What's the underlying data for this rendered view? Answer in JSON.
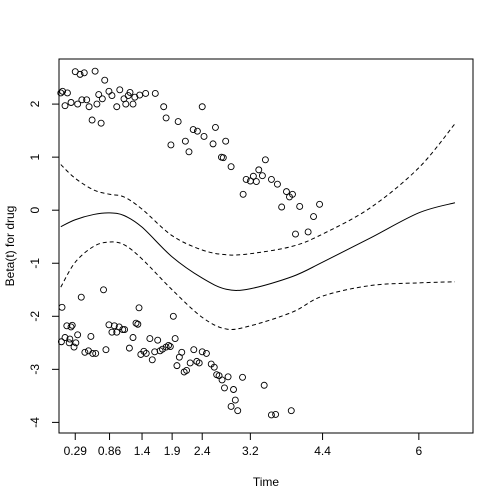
{
  "chart_data": {
    "type": "scatter",
    "title": "",
    "xlabel": "Time",
    "ylabel": "Beta(t) for drug",
    "x_ticks": [
      {
        "label": "0.29",
        "x": 0.29
      },
      {
        "label": "0.86",
        "x": 0.86
      },
      {
        "label": "1.4",
        "x": 1.4
      },
      {
        "label": "1.9",
        "x": 1.9
      },
      {
        "label": "2.4",
        "x": 2.4
      },
      {
        "label": "3.2",
        "x": 3.2
      },
      {
        "label": "4.4",
        "x": 4.4
      },
      {
        "label": "6",
        "x": 6.0
      }
    ],
    "y_ticks": [
      {
        "label": "-4",
        "y": -4
      },
      {
        "label": "-3",
        "y": -3
      },
      {
        "label": "-2",
        "y": -2
      },
      {
        "label": "-1",
        "y": -1
      },
      {
        "label": "0",
        "y": 0
      },
      {
        "label": "1",
        "y": 1
      },
      {
        "label": "2",
        "y": 2
      }
    ],
    "xlim": [
      0.02,
      6.9
    ],
    "ylim": [
      -4.2,
      2.85
    ],
    "grid": false,
    "legend": "none",
    "curve_knots_x": [
      0.05,
      0.29,
      0.6,
      0.86,
      1.1,
      1.4,
      1.9,
      2.4,
      2.8,
      3.2,
      3.9,
      4.4,
      5.2,
      6.0,
      6.6
    ],
    "series": [
      {
        "role": "fit",
        "line_style": "solid",
        "y": [
          -0.31,
          -0.18,
          -0.08,
          -0.05,
          -0.1,
          -0.32,
          -0.88,
          -1.28,
          -1.49,
          -1.48,
          -1.25,
          -0.98,
          -0.52,
          -0.05,
          0.14
        ]
      },
      {
        "role": "upper-band",
        "line_style": "dashed",
        "y": [
          0.86,
          0.6,
          0.38,
          0.3,
          0.25,
          0.02,
          -0.48,
          -0.75,
          -0.84,
          -0.82,
          -0.68,
          -0.45,
          0.05,
          0.8,
          1.63
        ]
      },
      {
        "role": "lower-band",
        "line_style": "dashed",
        "y": [
          -1.45,
          -0.98,
          -0.68,
          -0.6,
          -0.65,
          -0.92,
          -1.5,
          -2.02,
          -2.24,
          -2.18,
          -1.92,
          -1.62,
          -1.42,
          -1.37,
          -1.35
        ]
      }
    ],
    "points": [
      [
        0.05,
        2.21
      ],
      [
        0.08,
        2.24
      ],
      [
        0.12,
        1.97
      ],
      [
        0.16,
        2.21
      ],
      [
        0.22,
        2.03
      ],
      [
        0.29,
        2.61
      ],
      [
        0.33,
        2.0
      ],
      [
        0.37,
        2.56
      ],
      [
        0.4,
        2.08
      ],
      [
        0.44,
        2.59
      ],
      [
        0.48,
        2.08
      ],
      [
        0.52,
        1.95
      ],
      [
        0.57,
        1.7
      ],
      [
        0.62,
        2.62
      ],
      [
        0.65,
        2.0
      ],
      [
        0.68,
        2.18
      ],
      [
        0.72,
        1.64
      ],
      [
        0.74,
        2.1
      ],
      [
        0.78,
        2.45
      ],
      [
        0.85,
        2.24
      ],
      [
        0.9,
        2.16
      ],
      [
        0.98,
        1.95
      ],
      [
        1.03,
        2.27
      ],
      [
        1.1,
        2.1
      ],
      [
        1.13,
        2.0
      ],
      [
        1.17,
        2.16
      ],
      [
        1.2,
        2.22
      ],
      [
        1.25,
        2.0
      ],
      [
        1.28,
        2.13
      ],
      [
        1.36,
        2.17
      ],
      [
        1.46,
        2.2
      ],
      [
        1.62,
        2.2
      ],
      [
        1.76,
        1.95
      ],
      [
        1.8,
        1.74
      ],
      [
        1.88,
        1.23
      ],
      [
        2.0,
        1.67
      ],
      [
        2.12,
        1.3
      ],
      [
        2.18,
        1.1
      ],
      [
        2.25,
        1.52
      ],
      [
        2.32,
        1.49
      ],
      [
        2.4,
        1.95
      ],
      [
        2.43,
        1.39
      ],
      [
        2.58,
        1.25
      ],
      [
        2.62,
        1.56
      ],
      [
        2.72,
        1.0
      ],
      [
        2.75,
        0.99
      ],
      [
        2.79,
        1.3
      ],
      [
        2.88,
        0.82
      ],
      [
        3.08,
        0.3
      ],
      [
        3.13,
        0.58
      ],
      [
        3.2,
        0.55
      ],
      [
        3.25,
        0.64
      ],
      [
        3.3,
        0.54
      ],
      [
        3.34,
        0.76
      ],
      [
        3.4,
        0.65
      ],
      [
        3.45,
        0.95
      ],
      [
        3.55,
        0.58
      ],
      [
        3.65,
        0.49
      ],
      [
        3.72,
        0.06
      ],
      [
        3.8,
        0.35
      ],
      [
        3.85,
        0.25
      ],
      [
        3.9,
        0.3
      ],
      [
        3.95,
        -0.45
      ],
      [
        4.02,
        0.07
      ],
      [
        4.16,
        -0.41
      ],
      [
        4.25,
        -0.12
      ],
      [
        4.35,
        0.11
      ],
      [
        0.06,
        -2.48
      ],
      [
        0.07,
        -1.83
      ],
      [
        0.12,
        -2.4
      ],
      [
        0.15,
        -2.18
      ],
      [
        0.19,
        -2.5
      ],
      [
        0.2,
        -2.43
      ],
      [
        0.22,
        -2.2
      ],
      [
        0.24,
        -2.17
      ],
      [
        0.27,
        -2.58
      ],
      [
        0.3,
        -2.5
      ],
      [
        0.33,
        -2.35
      ],
      [
        0.39,
        -1.64
      ],
      [
        0.45,
        -2.68
      ],
      [
        0.51,
        -2.65
      ],
      [
        0.55,
        -2.38
      ],
      [
        0.58,
        -2.7
      ],
      [
        0.63,
        -2.7
      ],
      [
        0.76,
        -1.5
      ],
      [
        0.8,
        -2.63
      ],
      [
        0.85,
        -2.16
      ],
      [
        0.9,
        -2.3
      ],
      [
        0.94,
        -2.18
      ],
      [
        0.98,
        -2.3
      ],
      [
        1.02,
        -2.2
      ],
      [
        1.08,
        -2.25
      ],
      [
        1.11,
        -2.25
      ],
      [
        1.19,
        -2.6
      ],
      [
        1.25,
        -2.4
      ],
      [
        1.3,
        -2.13
      ],
      [
        1.33,
        -2.15
      ],
      [
        1.35,
        -1.84
      ],
      [
        1.38,
        -2.72
      ],
      [
        1.43,
        -2.66
      ],
      [
        1.47,
        -2.7
      ],
      [
        1.53,
        -2.42
      ],
      [
        1.57,
        -2.82
      ],
      [
        1.61,
        -2.67
      ],
      [
        1.66,
        -2.45
      ],
      [
        1.7,
        -2.65
      ],
      [
        1.74,
        -2.62
      ],
      [
        1.8,
        -2.58
      ],
      [
        1.84,
        -2.55
      ],
      [
        1.87,
        -2.57
      ],
      [
        1.92,
        -2.0
      ],
      [
        1.95,
        -2.42
      ],
      [
        1.98,
        -2.93
      ],
      [
        2.02,
        -2.77
      ],
      [
        2.06,
        -2.68
      ],
      [
        2.1,
        -3.05
      ],
      [
        2.14,
        -3.02
      ],
      [
        2.2,
        -2.88
      ],
      [
        2.26,
        -2.63
      ],
      [
        2.31,
        -2.85
      ],
      [
        2.35,
        -2.88
      ],
      [
        2.4,
        -2.67
      ],
      [
        2.47,
        -2.7
      ],
      [
        2.55,
        -2.9
      ],
      [
        2.6,
        -2.96
      ],
      [
        2.64,
        -3.1
      ],
      [
        2.68,
        -3.12
      ],
      [
        2.73,
        -3.2
      ],
      [
        2.77,
        -3.35
      ],
      [
        2.83,
        -3.14
      ],
      [
        2.88,
        -3.7
      ],
      [
        2.92,
        -3.38
      ],
      [
        2.95,
        -3.58
      ],
      [
        2.99,
        -3.78
      ],
      [
        3.07,
        -3.15
      ],
      [
        3.43,
        -3.3
      ],
      [
        3.55,
        -3.86
      ],
      [
        3.62,
        -3.85
      ],
      [
        3.88,
        -3.78
      ]
    ]
  }
}
